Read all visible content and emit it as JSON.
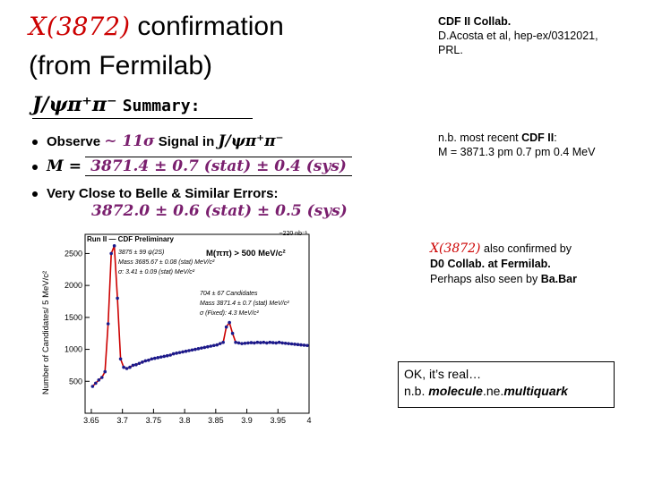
{
  "title": {
    "name": "X(3872)",
    "line1_rest": " confirmation",
    "line2": "(from Fermilab)"
  },
  "citation": {
    "line1": "CDF II Collab.",
    "line2": "D.Acosta et al, hep-ex/0312021,",
    "line3": "PRL."
  },
  "recent_note": {
    "prefix": "n.b. most recent ",
    "collab": "CDF II",
    "colon": ":",
    "text": "M =  3871.3 pm 0.7 pm 0.4 MeV"
  },
  "summary": {
    "heading_math": "J/ψπ⁺π⁻",
    "heading_word": "Summary:",
    "bullet1_text": "Observe",
    "bullet1_math": "∼ 11σ",
    "bullet1_mid": "Signal in",
    "bullet1_math2": "J/ψπ⁺π⁻",
    "bullet2_lhs": "M =",
    "bullet2_value": "3871.4 ± 0.7 (stat) ± 0.4 (sys)",
    "bullet3_text": "Very Close to Belle & Similar Errors:",
    "bullet3_value": "3872.0 ± 0.6 (stat) ± 0.5 (sys)"
  },
  "d0_note": {
    "name": "X(3872)",
    "line1": " also confirmed by",
    "line2": "D0 Collab. at Fermilab.",
    "line3_prefix": "Perhaps also seen by ",
    "line3_bold": "Ba.Bar"
  },
  "ok_box": {
    "line1": "OK, it’s real…",
    "line2_prefix": "n.b. ",
    "line2_a": "molecule",
    "line2_mid": ".ne.",
    "line2_b": "multiquark"
  },
  "colors": {
    "accent": "#cc0000",
    "purple": "#7a1f6e",
    "fit": "#cc0000",
    "points": "#1a1a8c"
  },
  "chart_data": {
    "type": "scatter",
    "ylabel": "Number of Candidates/ 5 MeV/c²",
    "lumi": "~220 nb⁻¹",
    "run_label": "Run II — CDF Preliminary",
    "cut_label": "M(ππ) > 500 MeV/c²",
    "psi_text": [
      "3875 ± 99 ψ(2S)",
      "Mass 3685.67 ± 0.08 (stat) MeV/c²",
      "σ: 3.41 ± 0.09 (stat) MeV/c²"
    ],
    "x_text": [
      "704 ± 67 Candidates",
      "Mass 3871.4 ± 0.7 (stat) MeV/c²",
      "σ (Fixed): 4.3 MeV/c²"
    ],
    "x_ticks": [
      "3.65",
      "3.7",
      "3.75",
      "3.8",
      "3.85",
      "3.9",
      "3.95",
      "4"
    ],
    "x_tick_values": [
      3.65,
      3.7,
      3.75,
      3.8,
      3.85,
      3.9,
      3.95,
      4.0
    ],
    "y_ticks": [
      "500",
      "1000",
      "1500",
      "2000",
      "2500"
    ],
    "y_tick_values": [
      500,
      1000,
      1500,
      2000,
      2500
    ],
    "xlim": [
      3.64,
      4.0
    ],
    "ylim": [
      0,
      2800
    ],
    "series": [
      {
        "values": [
          [
            3.652,
            420
          ],
          [
            3.657,
            470
          ],
          [
            3.662,
            520
          ],
          [
            3.667,
            560
          ],
          [
            3.672,
            650
          ],
          [
            3.677,
            1400
          ],
          [
            3.682,
            2500
          ],
          [
            3.687,
            2620
          ],
          [
            3.692,
            1800
          ],
          [
            3.697,
            850
          ],
          [
            3.702,
            720
          ],
          [
            3.707,
            700
          ],
          [
            3.712,
            720
          ],
          [
            3.717,
            750
          ],
          [
            3.722,
            760
          ],
          [
            3.727,
            780
          ],
          [
            3.732,
            800
          ],
          [
            3.737,
            820
          ],
          [
            3.742,
            830
          ],
          [
            3.747,
            850
          ],
          [
            3.752,
            860
          ],
          [
            3.757,
            870
          ],
          [
            3.762,
            880
          ],
          [
            3.767,
            890
          ],
          [
            3.772,
            900
          ],
          [
            3.777,
            910
          ],
          [
            3.782,
            930
          ],
          [
            3.787,
            940
          ],
          [
            3.792,
            950
          ],
          [
            3.797,
            960
          ],
          [
            3.802,
            970
          ],
          [
            3.807,
            980
          ],
          [
            3.812,
            990
          ],
          [
            3.817,
            1000
          ],
          [
            3.822,
            1010
          ],
          [
            3.827,
            1020
          ],
          [
            3.832,
            1030
          ],
          [
            3.837,
            1040
          ],
          [
            3.842,
            1050
          ],
          [
            3.847,
            1060
          ],
          [
            3.852,
            1070
          ],
          [
            3.857,
            1090
          ],
          [
            3.862,
            1110
          ],
          [
            3.867,
            1350
          ],
          [
            3.872,
            1420
          ],
          [
            3.877,
            1250
          ],
          [
            3.882,
            1110
          ],
          [
            3.887,
            1100
          ],
          [
            3.892,
            1090
          ],
          [
            3.897,
            1095
          ],
          [
            3.902,
            1100
          ],
          [
            3.907,
            1105
          ],
          [
            3.912,
            1100
          ],
          [
            3.917,
            1110
          ],
          [
            3.922,
            1105
          ],
          [
            3.927,
            1110
          ],
          [
            3.932,
            1100
          ],
          [
            3.937,
            1110
          ],
          [
            3.942,
            1105
          ],
          [
            3.947,
            1100
          ],
          [
            3.952,
            1110
          ],
          [
            3.957,
            1100
          ],
          [
            3.962,
            1095
          ],
          [
            3.967,
            1090
          ],
          [
            3.972,
            1085
          ],
          [
            3.977,
            1080
          ],
          [
            3.982,
            1075
          ],
          [
            3.987,
            1070
          ],
          [
            3.992,
            1065
          ],
          [
            3.997,
            1060
          ]
        ]
      }
    ]
  }
}
